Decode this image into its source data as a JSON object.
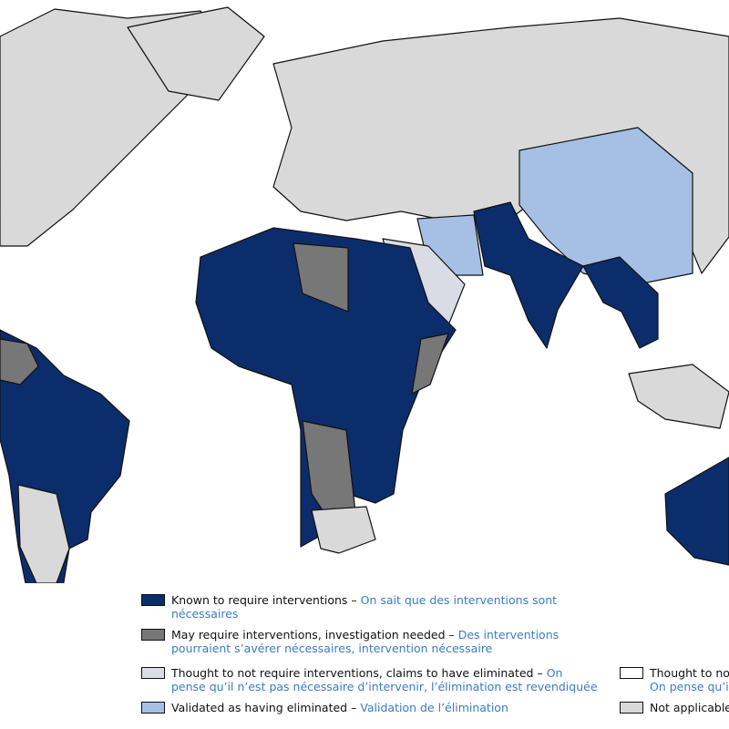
{
  "legend": {
    "items": [
      {
        "label": "Known to require interventions –",
        "label_fr": "On sait que des interventions sont nécessaires",
        "color": "#0c2d6b"
      },
      {
        "label": "May require interventions, investigation needed –",
        "label_fr": "Des interventions pourraient s’avérer nécessaires, intervention nécessaire",
        "color": "#777777"
      },
      {
        "label": "Thought to not require interventions, claims to have eliminated –",
        "label_fr": "On pense qu’il n’est pas nécessaire d’intervenir, l’élimination est revendiquée",
        "color": "#d9dce4"
      },
      {
        "label": "Validated as having eliminated –",
        "label_fr": "Validation de l’élimination",
        "color": "#a5c0e4"
      },
      {
        "label": "Thought to not",
        "label_fr": "On pense qu’il",
        "color": "#ffffff"
      },
      {
        "label": "Not applicable",
        "color": "#d9d9d9"
      }
    ]
  }
}
